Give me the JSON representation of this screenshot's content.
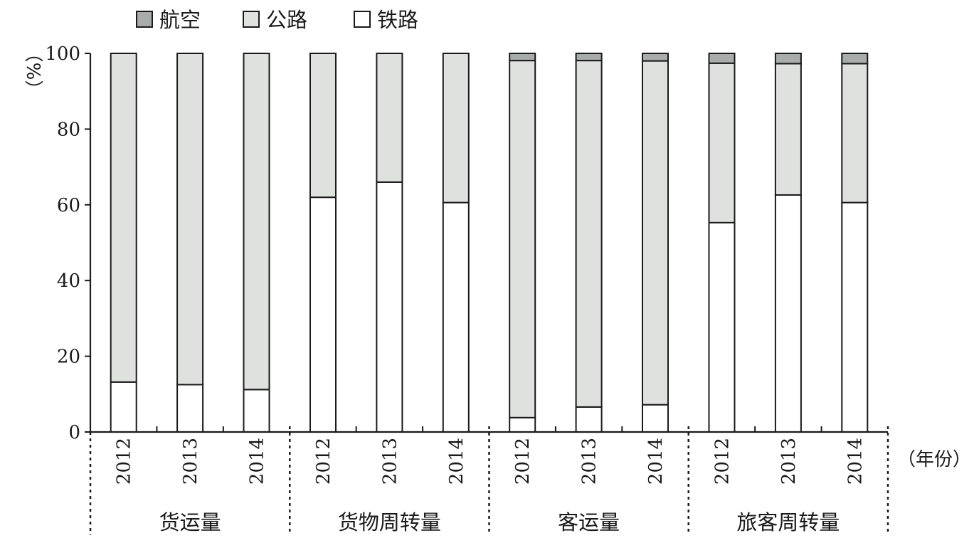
{
  "chart_data": {
    "type": "bar",
    "stacked": true,
    "ylabel": "（%）",
    "xlabel": "（年份）",
    "ylim": [
      0,
      100
    ],
    "yticks": [
      0,
      20,
      40,
      60,
      80,
      100
    ],
    "legend_position": "top-left",
    "groups": [
      "货运量",
      "货物周转量",
      "客运量",
      "旅客周转量"
    ],
    "years": [
      "2012",
      "2013",
      "2014"
    ],
    "series": [
      {
        "name": "铁路",
        "color": "#ffffff",
        "values": [
          13.2,
          12.5,
          11.2,
          62.0,
          66.0,
          60.6,
          3.8,
          6.6,
          7.2,
          55.3,
          62.6,
          60.6
        ]
      },
      {
        "name": "公路",
        "color": "#dfe1df",
        "values": [
          86.8,
          87.5,
          88.8,
          38.0,
          34.0,
          39.4,
          94.3,
          91.5,
          90.8,
          42.1,
          34.7,
          36.7
        ]
      },
      {
        "name": "航空",
        "color": "#a8acab",
        "values": [
          0.0,
          0.0,
          0.0,
          0.0,
          0.0,
          0.0,
          1.9,
          1.9,
          2.0,
          2.6,
          2.7,
          2.7
        ]
      }
    ],
    "legend": [
      "航空",
      "公路",
      "铁路"
    ]
  }
}
